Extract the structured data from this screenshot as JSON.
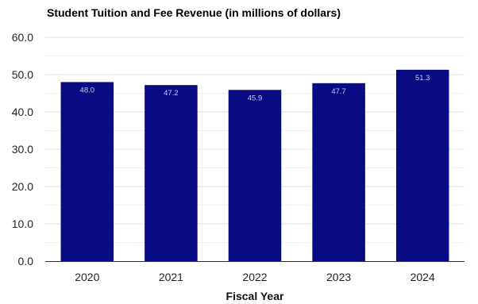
{
  "chart_data": {
    "type": "bar",
    "title": "Student Tuition and Fee Revenue (in millions of dollars)",
    "xlabel": "Fiscal Year",
    "ylabel": "",
    "categories": [
      "2020",
      "2021",
      "2022",
      "2023",
      "2024"
    ],
    "values": [
      48.0,
      47.2,
      45.9,
      47.7,
      51.3
    ],
    "data_labels": [
      "48.0",
      "47.2",
      "45.9",
      "47.7",
      "51.3"
    ],
    "ylim": [
      0,
      60
    ],
    "yticks": [
      "0.0",
      "10.0",
      "20.0",
      "30.0",
      "40.0",
      "50.0",
      "60.0"
    ],
    "grid": true,
    "legend": "none",
    "colors": {
      "bar": "#0a0a82",
      "grid": "#e0e0e0",
      "axis": "#333333"
    }
  }
}
